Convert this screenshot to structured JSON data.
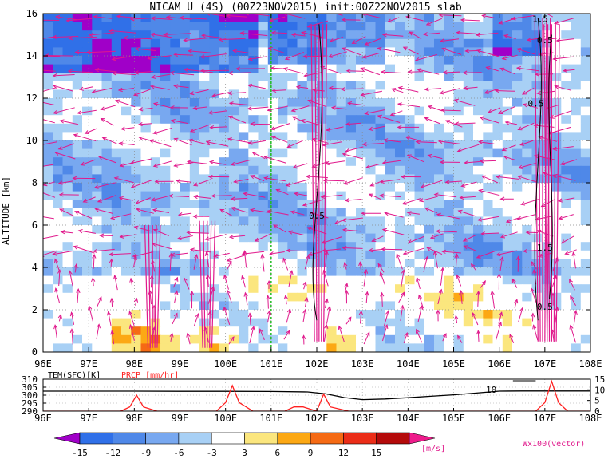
{
  "title": "NICAM U (4S) (00Z23NOV2015) init:00Z22NOV2015 slab",
  "chart_data": [
    {
      "type": "heatmap",
      "title": "NICAM U (4S) (00Z23NOV2015) init:00Z22NOV2015 slab",
      "ylabel": "ALTITUDE [km]",
      "xlabel": "",
      "x_ticks": [
        "96E",
        "97E",
        "98E",
        "99E",
        "100E",
        "101E",
        "102E",
        "103E",
        "104E",
        "105E",
        "106E",
        "107E",
        "108E"
      ],
      "y_ticks": [
        "0",
        "2",
        "4",
        "6",
        "8",
        "10",
        "12",
        "14",
        "16"
      ],
      "xlim": [
        96,
        108
      ],
      "ylim": [
        0,
        16
      ],
      "grid": true,
      "reference_line_x": 101,
      "contour_labels": [
        {
          "text": "0.5",
          "x": 102.0,
          "y": 6.3
        },
        {
          "text": "0.5",
          "x": 106.8,
          "y": 11.6
        },
        {
          "text": "1.5",
          "x": 107.0,
          "y": 4.8
        },
        {
          "text": "0.5",
          "x": 107.0,
          "y": 2.0
        },
        {
          "text": "0.5",
          "x": 107.0,
          "y": 14.6
        },
        {
          "text": "1.5",
          "x": 106.9,
          "y": 15.6
        }
      ],
      "vector_legend": "Wx100(vector)"
    },
    {
      "type": "line",
      "label_left": "TEM(SFC)[K]",
      "label_right": "PRCP [mm/hr]",
      "x_ticks": [
        "96E",
        "97E",
        "98E",
        "99E",
        "100E",
        "101E",
        "102E",
        "103E",
        "104E",
        "105E",
        "106E",
        "107E",
        "108E"
      ],
      "y_left_ticks": [
        "310",
        "305",
        "300",
        "295",
        "290"
      ],
      "y_right_ticks": [
        "15",
        "10",
        "5",
        "0"
      ],
      "xlim": [
        96,
        108
      ],
      "ylim_left": [
        290,
        310
      ],
      "ylim_right": [
        0,
        15
      ],
      "annotation": "10",
      "series": [
        {
          "name": "TEM(SFC)[K]",
          "color": "#000000",
          "x": [
            96,
            97,
            98,
            99,
            100,
            101,
            101.8,
            102.2,
            102.6,
            103,
            103.5,
            104,
            104.5,
            105,
            105.5,
            106,
            106.5,
            107,
            107.5,
            108
          ],
          "values": [
            302.5,
            302.5,
            302.5,
            302.4,
            302.4,
            302.3,
            302.0,
            300.8,
            298.5,
            297.2,
            297.6,
            298.4,
            299.3,
            300.2,
            301.3,
            302.5,
            302.6,
            302.6,
            302.6,
            302.6
          ]
        },
        {
          "name": "PRCP [mm/hr]",
          "color": "#ff2020",
          "x": [
            96,
            97.7,
            97.9,
            98.05,
            98.2,
            98.5,
            99.8,
            100.0,
            100.15,
            100.3,
            100.6,
            101.3,
            101.5,
            101.7,
            102.0,
            102.15,
            102.3,
            102.7,
            106.8,
            107.0,
            107.15,
            107.3,
            107.5,
            108
          ],
          "values": [
            0,
            0,
            2,
            7.5,
            2,
            0,
            0,
            4,
            12,
            4,
            0,
            0,
            2,
            2,
            0,
            8,
            2,
            0,
            0,
            4,
            14,
            4,
            0,
            0
          ]
        }
      ]
    },
    {
      "type": "colorbar",
      "ticks": [
        "-15",
        "-12",
        "-9",
        "-6",
        "-3",
        "3",
        "6",
        "9",
        "12",
        "15"
      ],
      "unit": "[m/s]",
      "colors": [
        "#a000c8",
        "#3070e8",
        "#4f88e8",
        "#78a8f0",
        "#a8d0f5",
        "#ffffff",
        "#fbe67e",
        "#fca814",
        "#f56a14",
        "#eb2d18",
        "#b40a0a",
        "#ee1c8c"
      ]
    }
  ]
}
